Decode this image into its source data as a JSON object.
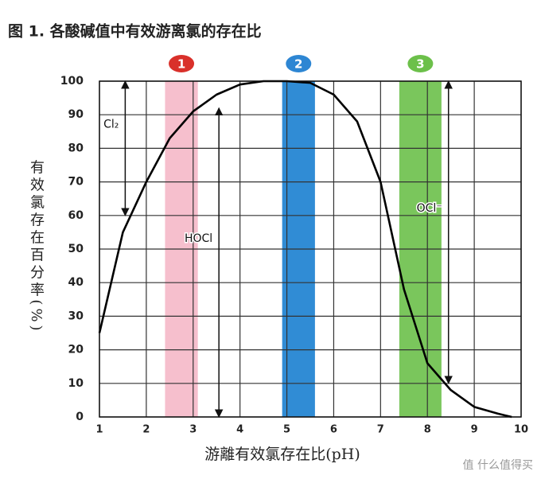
{
  "chart_data": {
    "type": "line",
    "title": "图 1. 各酸碱值中有效游离氯的存在比",
    "y_label": "有效氯存在百分率(%)",
    "x_label": "游離有效氯存在比(pH)",
    "x": [
      1,
      1.5,
      2,
      2.5,
      3,
      3.5,
      4,
      4.5,
      5,
      5.5,
      6,
      6.5,
      7,
      7.5,
      8,
      8.5,
      9,
      9.5,
      9.8
    ],
    "values": [
      25,
      55,
      70,
      83,
      91,
      96,
      99,
      100,
      100,
      99.5,
      96,
      88,
      70,
      38,
      16,
      8,
      3,
      1,
      0
    ],
    "color": "#000000",
    "xlim": [
      1,
      10
    ],
    "ylim": [
      0,
      100
    ],
    "xticks": [
      1,
      2,
      3,
      4,
      5,
      6,
      7,
      8,
      9,
      10
    ],
    "yticks": [
      0,
      10,
      20,
      30,
      40,
      50,
      60,
      70,
      80,
      90,
      100
    ],
    "grid": true,
    "bands": [
      {
        "label": "1",
        "from": 2.4,
        "to": 3.1,
        "color": "#f5b8c8",
        "badge": "#d9302a"
      },
      {
        "label": "2",
        "from": 4.9,
        "to": 5.6,
        "color": "#1a7fd0",
        "badge": "#2d86d3"
      },
      {
        "label": "3",
        "from": 7.4,
        "to": 8.3,
        "color": "#6cc04a",
        "badge": "#6cc04a"
      }
    ],
    "arrows": [
      {
        "label": "Cl₂",
        "x": 1.55,
        "from": 100,
        "to": 60
      },
      {
        "label": "HOCl",
        "x": 3.55,
        "from": 92,
        "to": 0
      },
      {
        "label": "OCl⁻",
        "x": 8.45,
        "from": 100,
        "to": 10
      }
    ],
    "watermark": "值 什么值得买"
  }
}
